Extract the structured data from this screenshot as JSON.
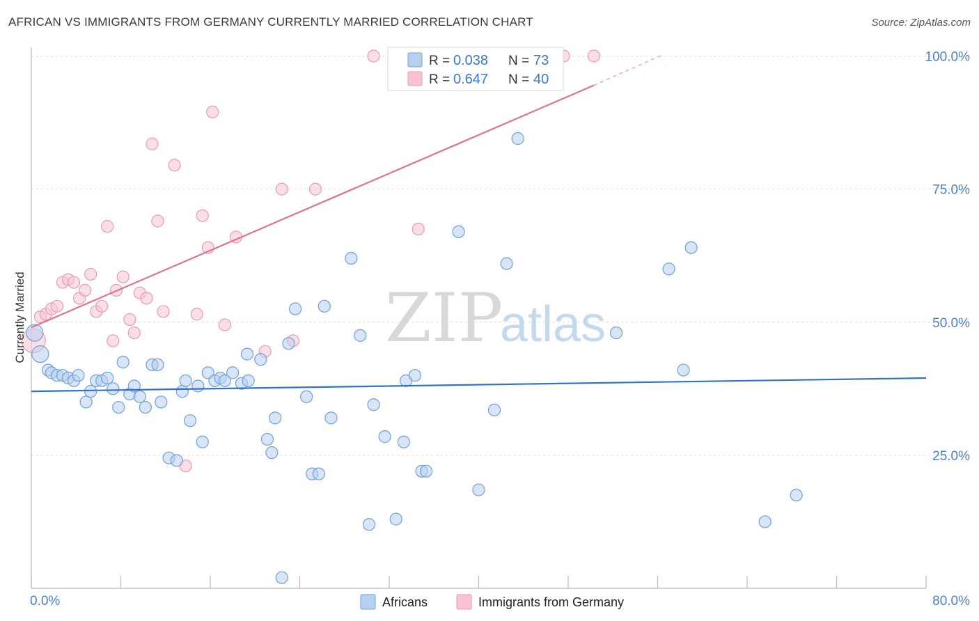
{
  "header": {
    "title": "AFRICAN VS IMMIGRANTS FROM GERMANY CURRENTLY MARRIED CORRELATION CHART",
    "source": "Source: ZipAtlas.com"
  },
  "watermark": {
    "zip": "ZIP",
    "atlas": "atlas"
  },
  "colors": {
    "blue_fill": "#b8d0f0",
    "blue_stroke": "#6f9fd8",
    "blue_line": "#2f73c9",
    "pink_fill": "#f8c4d4",
    "pink_stroke": "#e89ab4",
    "pink_line": "#e0709a",
    "grid": "#dcdcdc",
    "axis_text": "#4a7fc8"
  },
  "legend_top": {
    "rows": [
      {
        "r_label": "R = ",
        "r_value": "0.038",
        "n_label": "N = ",
        "n_value": "73"
      },
      {
        "r_label": "R = ",
        "r_value": "0.647",
        "n_label": "N = ",
        "n_value": "40"
      }
    ]
  },
  "legend_bottom": {
    "items": [
      "Africans",
      "Immigrants from Germany"
    ]
  },
  "chart_data": {
    "type": "scatter",
    "title": "AFRICAN VS IMMIGRANTS FROM GERMANY CURRENTLY MARRIED CORRELATION CHART",
    "xlabel": "",
    "ylabel": "Currently Married",
    "xlim": [
      0,
      80
    ],
    "ylim": [
      0,
      105
    ],
    "x_tick_labels": [
      "0.0%",
      "80.0%"
    ],
    "y_ticks": [
      25,
      50,
      75,
      100
    ],
    "y_tick_labels": [
      "25.0%",
      "50.0%",
      "75.0%",
      "100.0%"
    ],
    "grid": true,
    "legend_position": "top-center",
    "series": [
      {
        "name": "Africans",
        "color": "#6f9fd8",
        "r": 0.038,
        "n": 73,
        "trend": {
          "x": [
            0,
            80
          ],
          "y": [
            37.0,
            39.5
          ]
        },
        "points": [
          [
            0.3,
            48
          ],
          [
            0.8,
            44
          ],
          [
            1.5,
            41
          ],
          [
            1.8,
            40.5
          ],
          [
            2.3,
            40
          ],
          [
            2.8,
            40
          ],
          [
            3.3,
            39.5
          ],
          [
            3.8,
            39
          ],
          [
            4.2,
            40
          ],
          [
            4.9,
            35
          ],
          [
            5.3,
            37
          ],
          [
            5.8,
            39
          ],
          [
            6.3,
            39
          ],
          [
            6.8,
            39.5
          ],
          [
            7.3,
            37.5
          ],
          [
            7.8,
            34
          ],
          [
            8.2,
            42.5
          ],
          [
            8.8,
            36.5
          ],
          [
            9.2,
            38
          ],
          [
            9.7,
            36
          ],
          [
            10.2,
            34
          ],
          [
            10.8,
            42
          ],
          [
            11.3,
            42
          ],
          [
            11.6,
            35
          ],
          [
            12.3,
            24.5
          ],
          [
            13.0,
            24
          ],
          [
            13.5,
            37
          ],
          [
            13.8,
            39
          ],
          [
            14.2,
            31.5
          ],
          [
            14.9,
            38
          ],
          [
            15.3,
            27.5
          ],
          [
            15.8,
            40.5
          ],
          [
            16.4,
            39
          ],
          [
            16.9,
            39.5
          ],
          [
            17.3,
            39
          ],
          [
            18.0,
            40.5
          ],
          [
            18.8,
            38.5
          ],
          [
            19.4,
            39
          ],
          [
            19.3,
            44
          ],
          [
            20.5,
            43
          ],
          [
            21.1,
            28
          ],
          [
            21.5,
            25.5
          ],
          [
            21.8,
            32
          ],
          [
            22.4,
            2
          ],
          [
            23.0,
            46
          ],
          [
            23.6,
            52.5
          ],
          [
            24.6,
            36
          ],
          [
            25.1,
            21.5
          ],
          [
            25.7,
            21.5
          ],
          [
            26.2,
            53
          ],
          [
            26.8,
            32
          ],
          [
            28.6,
            62
          ],
          [
            29.4,
            47.5
          ],
          [
            30.2,
            12
          ],
          [
            30.6,
            34.5
          ],
          [
            31.6,
            28.5
          ],
          [
            32.6,
            13
          ],
          [
            33.3,
            27.5
          ],
          [
            33.5,
            39
          ],
          [
            34.3,
            40
          ],
          [
            34.9,
            22
          ],
          [
            35.3,
            22
          ],
          [
            38.2,
            67
          ],
          [
            40.0,
            18.5
          ],
          [
            41.4,
            33.5
          ],
          [
            42.5,
            61
          ],
          [
            43.5,
            84.5
          ],
          [
            52.3,
            48
          ],
          [
            57.0,
            60
          ],
          [
            58.3,
            41
          ],
          [
            59.0,
            64
          ],
          [
            65.6,
            12.5
          ],
          [
            68.4,
            17.5
          ]
        ]
      },
      {
        "name": "Immigrants from Germany",
        "color": "#e89ab4",
        "r": 0.647,
        "n": 40,
        "trend": {
          "x": [
            0,
            50.3
          ],
          "y": [
            49.0,
            94.5
          ],
          "dashed_to": {
            "x": 56.4,
            "y": 100.2
          }
        },
        "points": [
          [
            0.2,
            46.5
          ],
          [
            0.8,
            51
          ],
          [
            1.3,
            51.5
          ],
          [
            1.8,
            52.5
          ],
          [
            2.3,
            53
          ],
          [
            2.8,
            57.5
          ],
          [
            3.3,
            58
          ],
          [
            3.8,
            57.5
          ],
          [
            4.3,
            54.5
          ],
          [
            4.8,
            56
          ],
          [
            5.3,
            59
          ],
          [
            5.8,
            52
          ],
          [
            6.3,
            53
          ],
          [
            6.8,
            68
          ],
          [
            7.3,
            46.5
          ],
          [
            7.6,
            56
          ],
          [
            8.2,
            58.5
          ],
          [
            8.8,
            50.5
          ],
          [
            9.2,
            48
          ],
          [
            9.7,
            55.5
          ],
          [
            10.3,
            54.5
          ],
          [
            10.8,
            83.5
          ],
          [
            11.3,
            69
          ],
          [
            11.8,
            52
          ],
          [
            12.8,
            79.5
          ],
          [
            13.8,
            23
          ],
          [
            14.8,
            51.5
          ],
          [
            15.3,
            70
          ],
          [
            15.8,
            64
          ],
          [
            16.2,
            89.5
          ],
          [
            17.3,
            49.5
          ],
          [
            18.3,
            66
          ],
          [
            20.9,
            44.5
          ],
          [
            22.4,
            75
          ],
          [
            23.4,
            46.5
          ],
          [
            25.4,
            75
          ],
          [
            30.6,
            100
          ],
          [
            34.6,
            67.5
          ],
          [
            47.6,
            100
          ],
          [
            50.3,
            100
          ]
        ]
      }
    ]
  }
}
